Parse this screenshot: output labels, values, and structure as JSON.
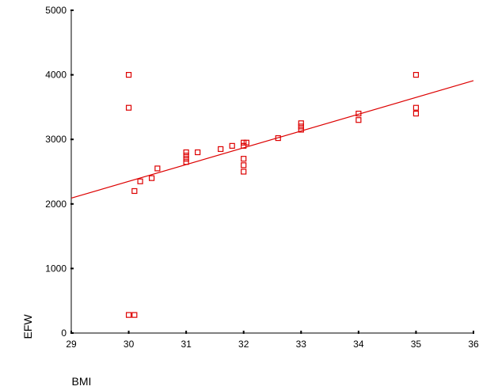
{
  "chart_data": {
    "type": "scatter",
    "title": "",
    "xlabel": "BMI",
    "ylabel": "EFW",
    "xlim": [
      29,
      36
    ],
    "ylim": [
      0,
      5000
    ],
    "xticks": [
      29,
      30,
      31,
      32,
      33,
      34,
      35,
      36
    ],
    "xtick_labels": [
      "29",
      "30",
      "31",
      "32",
      "33",
      "34",
      "35",
      "36"
    ],
    "yticks": [
      0,
      1000,
      2000,
      3000,
      4000,
      5000
    ],
    "ytick_labels": [
      "0",
      "1000",
      "2000",
      "3000",
      "4000",
      "5000"
    ],
    "grid": false,
    "legend": "none",
    "marker": "hollow-square",
    "series": [
      {
        "color": "#dd0000",
        "points": [
          {
            "x": 30.0,
            "y": 4000
          },
          {
            "x": 30.0,
            "y": 3490
          },
          {
            "x": 30.0,
            "y": 280
          },
          {
            "x": 30.1,
            "y": 280
          },
          {
            "x": 30.1,
            "y": 2200
          },
          {
            "x": 30.2,
            "y": 2350
          },
          {
            "x": 30.4,
            "y": 2400
          },
          {
            "x": 30.5,
            "y": 2550
          },
          {
            "x": 31.0,
            "y": 2800
          },
          {
            "x": 31.0,
            "y": 2750
          },
          {
            "x": 31.0,
            "y": 2700
          },
          {
            "x": 31.0,
            "y": 2650
          },
          {
            "x": 31.2,
            "y": 2800
          },
          {
            "x": 31.6,
            "y": 2850
          },
          {
            "x": 31.8,
            "y": 2900
          },
          {
            "x": 32.0,
            "y": 2950
          },
          {
            "x": 32.0,
            "y": 2900
          },
          {
            "x": 32.05,
            "y": 2950
          },
          {
            "x": 32.0,
            "y": 2700
          },
          {
            "x": 32.0,
            "y": 2600
          },
          {
            "x": 32.0,
            "y": 2500
          },
          {
            "x": 32.6,
            "y": 3020
          },
          {
            "x": 33.0,
            "y": 3250
          },
          {
            "x": 33.0,
            "y": 3200
          },
          {
            "x": 33.0,
            "y": 3150
          },
          {
            "x": 34.0,
            "y": 3400
          },
          {
            "x": 34.0,
            "y": 3300
          },
          {
            "x": 35.0,
            "y": 4000
          },
          {
            "x": 35.0,
            "y": 3490
          },
          {
            "x": 35.0,
            "y": 3400
          }
        ]
      }
    ],
    "fit_line": {
      "color": "#dd0000",
      "x": [
        29,
        36
      ],
      "y": [
        2090,
        3910
      ]
    }
  }
}
